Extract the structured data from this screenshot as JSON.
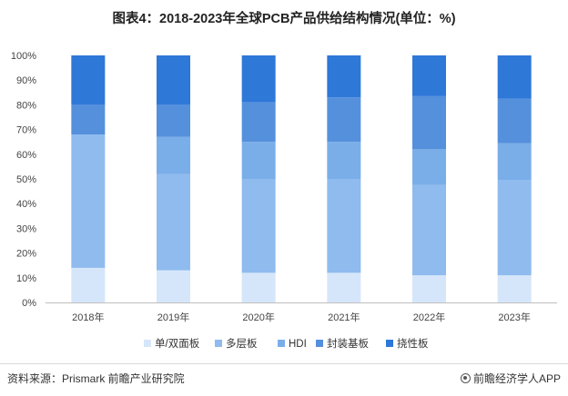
{
  "header": {
    "title": "图表4：2018-2023年全球PCB产品供给结构情况(单位：%)"
  },
  "footer": {
    "source": "资料来源：Prismark 前瞻产业研究院",
    "brand": "前瞻经济学人APP",
    "brand_icon": "logo-icon"
  },
  "watermark": {
    "text": "前瞻产业研究院"
  },
  "colors": {
    "single_double": "#d6e6fa",
    "multilayer": "#8fbbef",
    "hdi": "#7aaee9",
    "substrate": "#5590dc",
    "flex": "#2e78d8"
  },
  "chart_data": {
    "type": "bar",
    "stacked": true,
    "title": "图表4：2018-2023年全球PCB产品供给结构情况(单位：%)",
    "categories": [
      "2018年",
      "2019年",
      "2020年",
      "2021年",
      "2022年",
      "2023年"
    ],
    "series": [
      {
        "name": "单/双面板",
        "values": [
          14,
          13,
          12,
          12,
          11,
          11
        ]
      },
      {
        "name": "多层板",
        "values": [
          54,
          39,
          38,
          38,
          36.5,
          38.5
        ]
      },
      {
        "name": "HDI",
        "values": [
          0,
          15,
          15,
          15,
          14.5,
          15
        ]
      },
      {
        "name": "封装基板",
        "values": [
          12,
          13,
          16,
          18,
          21.5,
          18
        ]
      },
      {
        "name": "挠性板",
        "values": [
          20,
          20,
          19,
          17,
          16.5,
          17.5
        ]
      }
    ],
    "yticks": [
      "0%",
      "10%",
      "20%",
      "30%",
      "40%",
      "50%",
      "60%",
      "70%",
      "80%",
      "90%",
      "100%"
    ],
    "ylim": [
      0,
      100
    ],
    "grid": false,
    "legend": "bottom"
  }
}
